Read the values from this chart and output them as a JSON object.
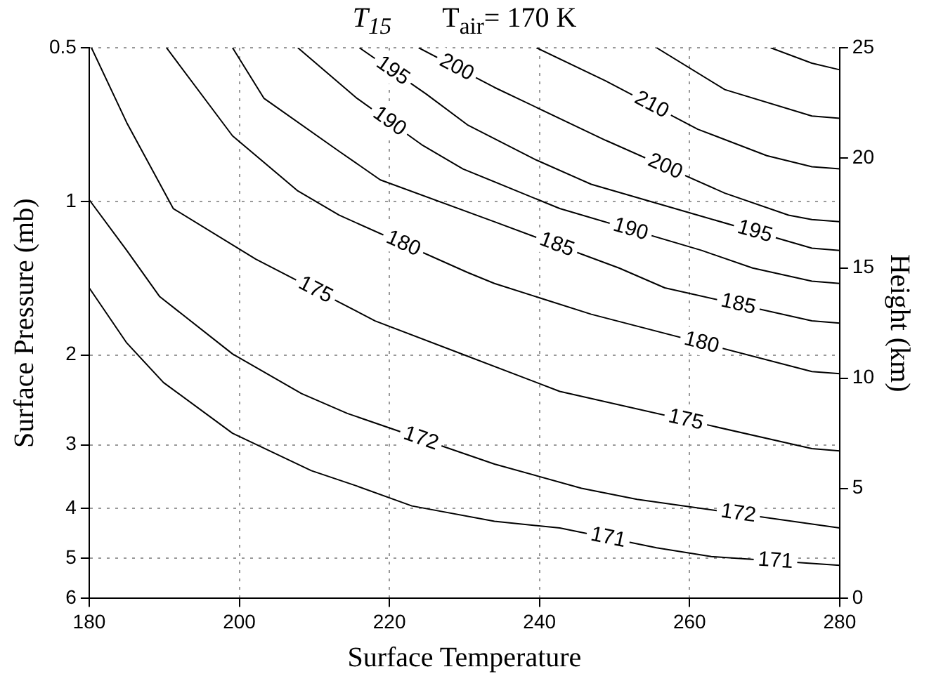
{
  "chart_data": {
    "type": "line",
    "title": "T$_{15}$",
    "subtitle": "T$_{air}$= 170 K",
    "xlabel": "Surface Temperature",
    "ylabel": "Surface Pressure (mb)",
    "y2label": "Height (km)",
    "xlim": [
      180,
      280
    ],
    "xticks": [
      180,
      200,
      220,
      240,
      260,
      280
    ],
    "ylim": [
      6,
      0.5
    ],
    "yticks": [
      0.5,
      1,
      2,
      3,
      4,
      5,
      6
    ],
    "y2lim": [
      0,
      25
    ],
    "y2ticks": [
      0,
      5,
      10,
      15,
      20,
      25
    ],
    "log": "y",
    "grid": true,
    "legend": false,
    "marker": "none",
    "line_style": "solid",
    "series": [
      {
        "name": "171",
        "color": "#000000",
        "axis": "y2",
        "x": [
          180,
          185,
          189.9,
          199.1,
          209.6,
          215.7,
          223,
          234,
          242.7,
          255.6,
          262.9,
          280
        ],
        "values": [
          14.1,
          11.6,
          9.8,
          7.5,
          5.8,
          5.1,
          4.2,
          3.5,
          3.2,
          2.3,
          1.9,
          1.5
        ]
      },
      {
        "name": "172",
        "color": "#000000",
        "axis": "y2",
        "x": [
          180,
          185,
          189.4,
          199.1,
          208.3,
          214.4,
          234,
          245.6,
          253,
          280
        ],
        "values": [
          18.1,
          15.8,
          13.7,
          11.1,
          9.3,
          8.4,
          6.1,
          5,
          4.5,
          3.2
        ]
      },
      {
        "name": "175",
        "color": "#000000",
        "axis": "y2",
        "x": [
          180.3,
          185,
          191.2,
          202.2,
          218.1,
          230.4,
          242.7,
          276.3,
          280
        ],
        "values": [
          25,
          21.6,
          17.7,
          15.4,
          12.6,
          11,
          9.4,
          6.8,
          6.7
        ]
      },
      {
        "name": "180",
        "color": "#000000",
        "axis": "y2",
        "x": [
          190.3,
          199.1,
          207.8,
          213.3,
          230.4,
          234,
          246.9,
          276.3,
          280
        ],
        "values": [
          25,
          21,
          18.5,
          17.4,
          14.8,
          14.3,
          12.9,
          10.3,
          10.2
        ]
      },
      {
        "name": "185",
        "color": "#000000",
        "axis": "y2",
        "x": [
          199.1,
          203.3,
          213.3,
          218.8,
          234,
          250.6,
          256.7,
          276.3,
          280
        ],
        "values": [
          25,
          22.7,
          20.3,
          19,
          17.1,
          15,
          14.1,
          12.6,
          12.5
        ]
      },
      {
        "name": "190",
        "color": "#000000",
        "axis": "y2",
        "x": [
          207.8,
          215.7,
          224.3,
          229.8,
          242.7,
          261.6,
          268.4,
          276.3,
          280
        ],
        "values": [
          25,
          22.7,
          20.6,
          19.5,
          17.7,
          15.8,
          15,
          14.4,
          14.3
        ]
      },
      {
        "name": "195",
        "color": "#000000",
        "axis": "y2",
        "x": [
          216,
          224.9,
          230.4,
          239.6,
          246.9,
          261.1,
          276.3,
          280
        ],
        "values": [
          25,
          22.9,
          21.5,
          19.9,
          18.8,
          17.4,
          15.9,
          15.8
        ]
      },
      {
        "name": "200",
        "color": "#000000",
        "axis": "y2",
        "x": [
          223.9,
          234,
          248.8,
          264.7,
          273.2,
          276.3,
          280
        ],
        "values": [
          25,
          23.2,
          20.8,
          18.4,
          17.4,
          17.2,
          17.1
        ]
      },
      {
        "name": "210",
        "color": "#000000",
        "axis": "y2",
        "x": [
          239.6,
          248.8,
          261.1,
          270.3,
          276.3,
          280
        ],
        "values": [
          25,
          23.5,
          21.3,
          20.1,
          19.6,
          19.5
        ]
      },
      {
        "color": "#000000",
        "axis": "y2",
        "x": [
          255.6,
          264.7,
          276.3,
          280
        ],
        "values": [
          25,
          23.1,
          21.9,
          21.8
        ]
      },
      {
        "color": "#000000",
        "axis": "y2",
        "x": [
          270.8,
          276.3,
          280
        ],
        "values": [
          25,
          24.3,
          24
        ]
      }
    ]
  }
}
